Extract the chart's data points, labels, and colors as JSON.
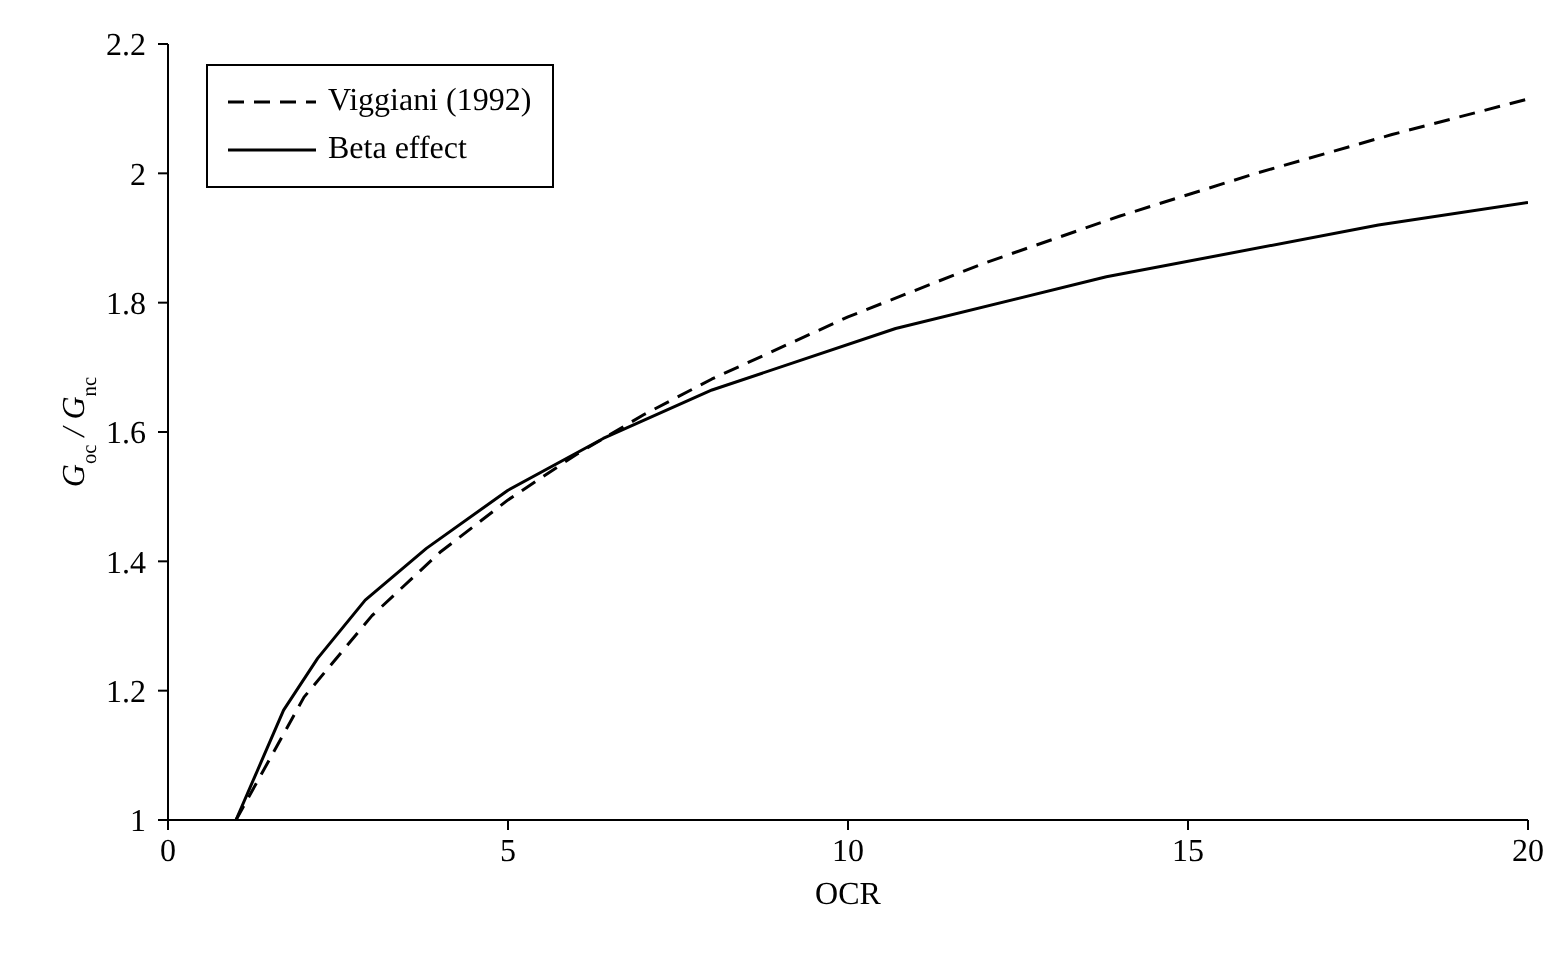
{
  "chart_data": {
    "type": "line",
    "xlabel": "OCR",
    "ylabel": "G$_{oc}$ / G$_{nc}$",
    "xlim": [
      0,
      20
    ],
    "xticks": [
      0,
      5,
      10,
      15,
      20
    ],
    "ylim": [
      1,
      2.2
    ],
    "yticks": [
      1,
      1.2,
      1.4,
      1.6,
      1.8,
      2,
      2.2
    ],
    "grid": false,
    "legend": "top left",
    "marker": "none",
    "series": [
      {
        "name": "Viggiani (1992)",
        "color": "#000000",
        "line_style": "dashed",
        "x": [
          1,
          2,
          3,
          4,
          5,
          6,
          7,
          8,
          10,
          12,
          14,
          16,
          18,
          20
        ],
        "values": [
          1,
          1.19,
          1.316,
          1.414,
          1.495,
          1.565,
          1.627,
          1.682,
          1.778,
          1.861,
          1.934,
          2.0,
          2.06,
          2.115
        ]
      },
      {
        "name": "Beta effect",
        "color": "#000000",
        "line_style": "solid",
        "x": [
          1,
          1.7,
          2.2,
          2.9,
          3.8,
          5,
          6.4,
          8,
          10.7,
          13.8,
          17.8,
          20
        ],
        "values": [
          1,
          1.17,
          1.25,
          1.34,
          1.42,
          1.51,
          1.59,
          1.665,
          1.76,
          1.84,
          1.92,
          1.955
        ]
      }
    ]
  }
}
